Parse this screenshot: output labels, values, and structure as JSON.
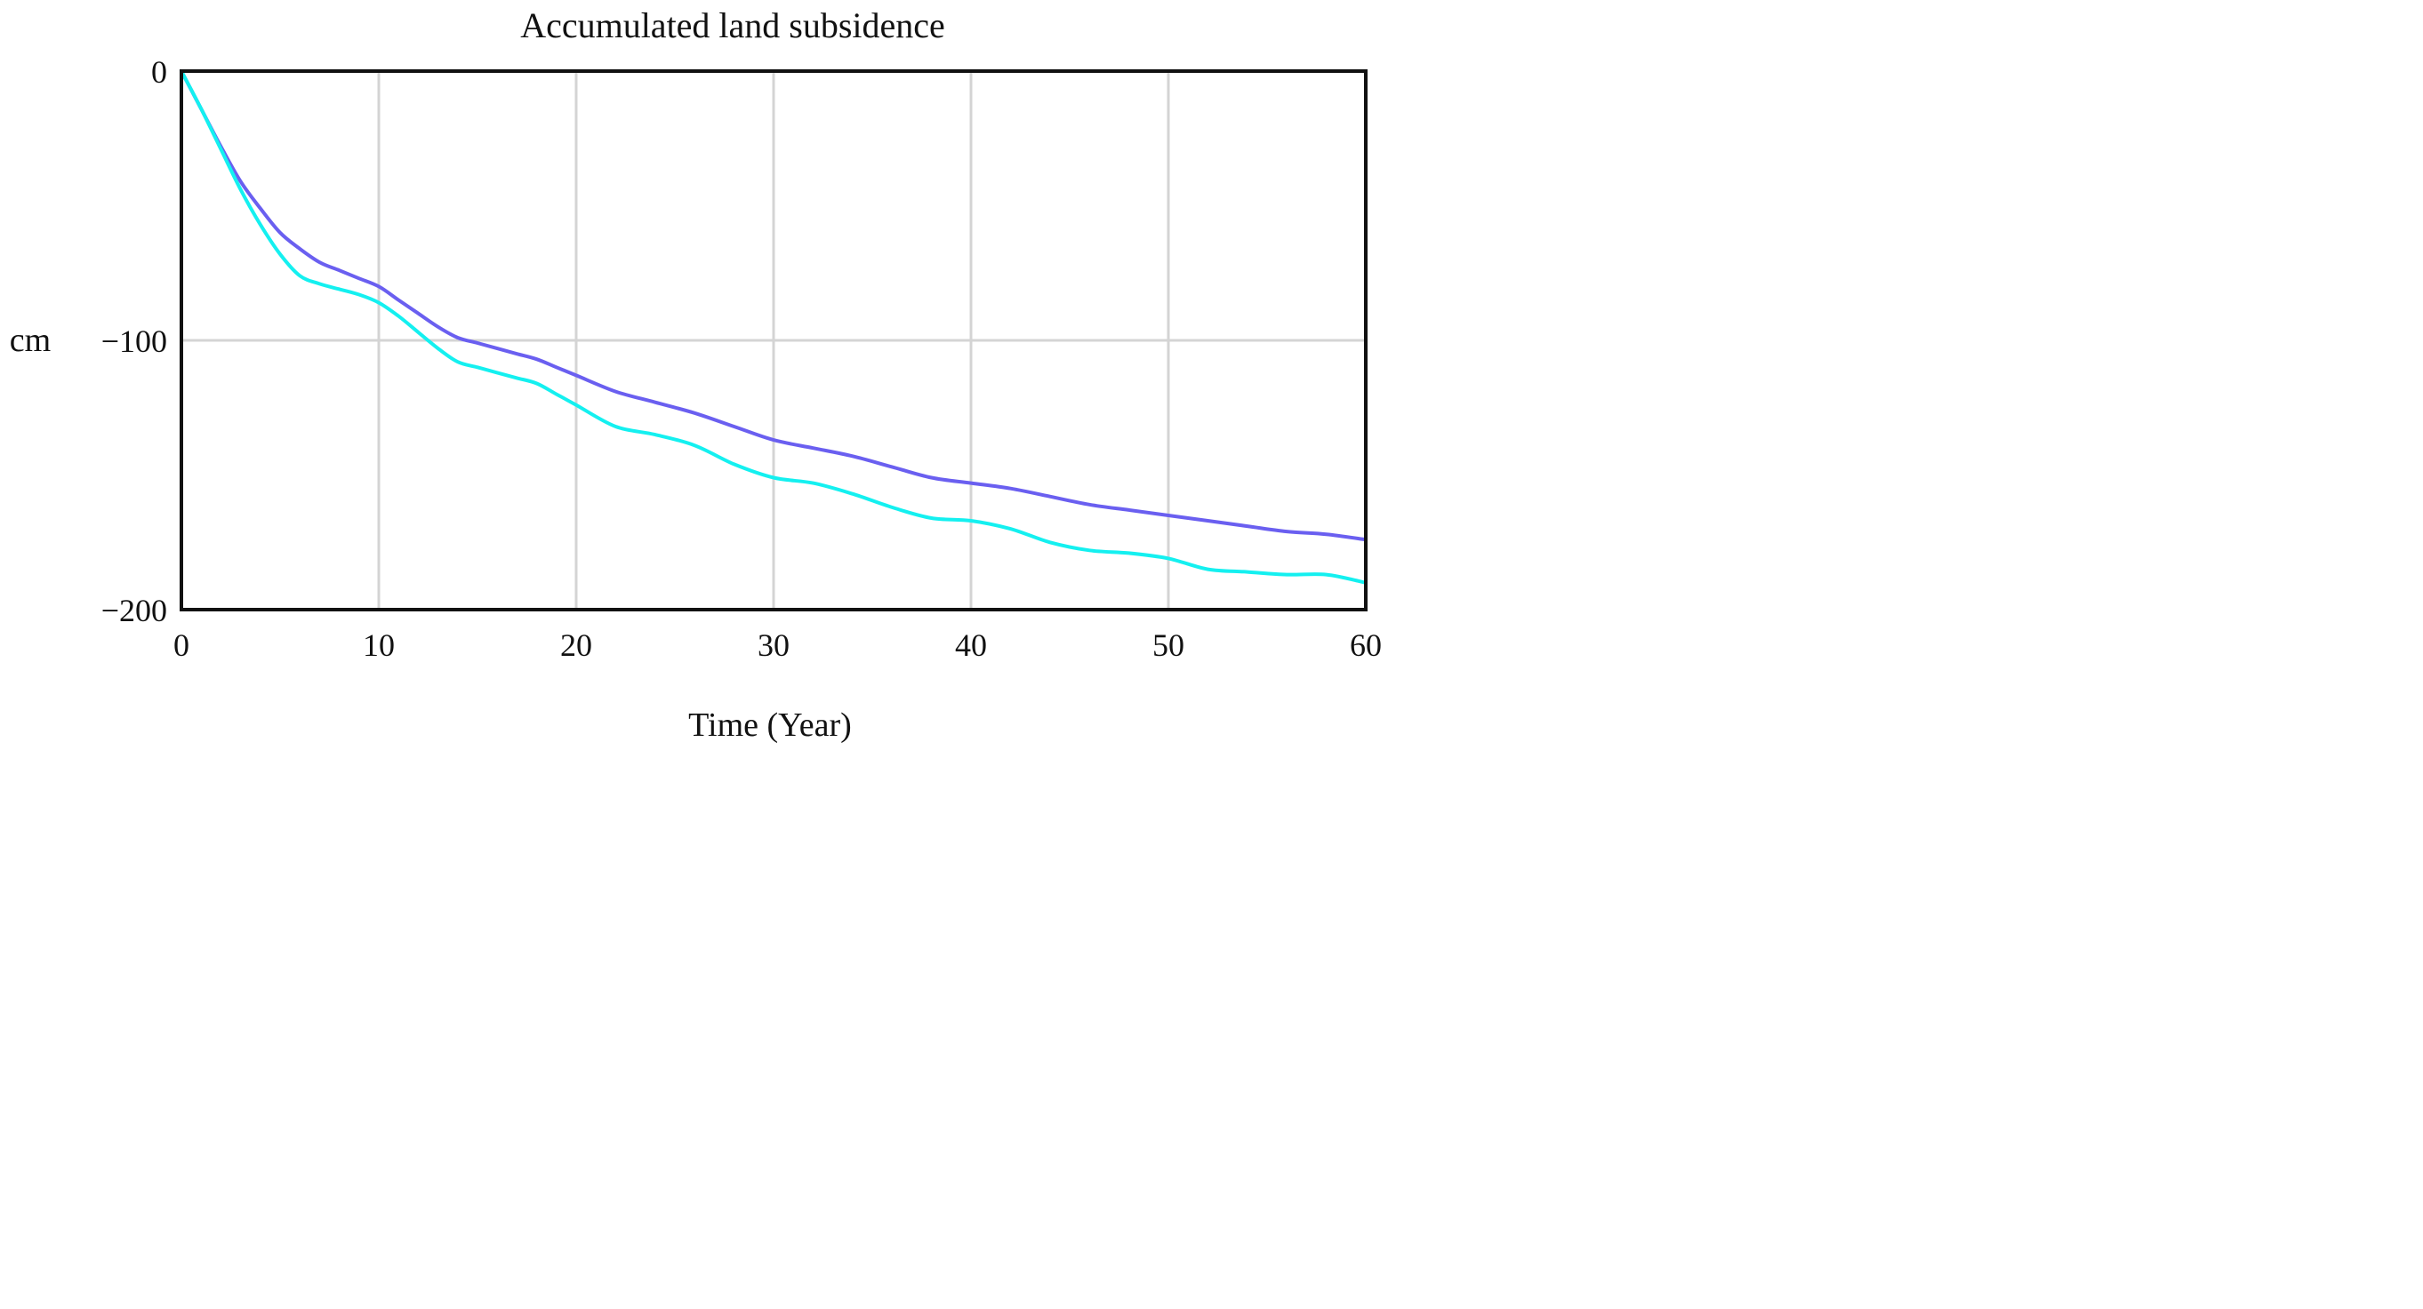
{
  "chart_data": {
    "type": "line",
    "title": "Accumulated land subsidence",
    "xlabel": "Time (Year)",
    "ylabel": "cm",
    "xlim": [
      0,
      60
    ],
    "ylim": [
      -200,
      0
    ],
    "x_ticks": [
      0,
      10,
      20,
      30,
      40,
      50,
      60
    ],
    "x_tick_labels": [
      "0",
      "10",
      "20",
      "30",
      "40",
      "50",
      "60"
    ],
    "y_ticks": [
      0,
      -100,
      -200
    ],
    "y_tick_labels": [
      "0",
      "−100",
      "−200"
    ],
    "grid": true,
    "legend": "none",
    "series": [
      {
        "color": "#6a5ff0",
        "x": [
          0,
          1,
          2,
          3,
          4,
          5,
          6,
          7,
          8,
          9,
          10,
          11,
          12,
          13,
          14,
          15,
          16,
          17,
          18,
          19,
          20,
          22,
          24,
          26,
          28,
          30,
          32,
          34,
          36,
          38,
          40,
          42,
          44,
          46,
          48,
          50,
          52,
          54,
          56,
          58,
          60
        ],
        "values": [
          0,
          -14,
          -28,
          -41,
          -51,
          -60,
          -66,
          -71,
          -74,
          -77,
          -80,
          -85,
          -90,
          -95,
          -99,
          -101,
          -103,
          -105,
          -107,
          -110,
          -113,
          -119,
          -123,
          -127,
          -132,
          -137,
          -140,
          -143,
          -147,
          -151,
          -153,
          -155,
          -158,
          -161,
          -163,
          -165,
          -167,
          -169,
          -171,
          -172,
          -174
        ]
      },
      {
        "color": "#14f0f0",
        "x": [
          0,
          1,
          2,
          3,
          4,
          5,
          6,
          7,
          8,
          9,
          10,
          11,
          12,
          13,
          14,
          15,
          16,
          17,
          18,
          19,
          20,
          22,
          24,
          26,
          28,
          30,
          32,
          34,
          36,
          38,
          40,
          42,
          44,
          46,
          48,
          50,
          52,
          54,
          56,
          58,
          60
        ],
        "values": [
          0,
          -14,
          -29,
          -44,
          -57,
          -68,
          -76,
          -79,
          -81,
          -83,
          -86,
          -91,
          -97,
          -103,
          -108,
          -110,
          -112,
          -114,
          -116,
          -120,
          -124,
          -132,
          -135,
          -139,
          -146,
          -151,
          -153,
          -157,
          -162,
          -166,
          -167,
          -170,
          -175,
          -178,
          -179,
          -181,
          -185,
          -186,
          -187,
          -187,
          -190
        ]
      }
    ]
  }
}
